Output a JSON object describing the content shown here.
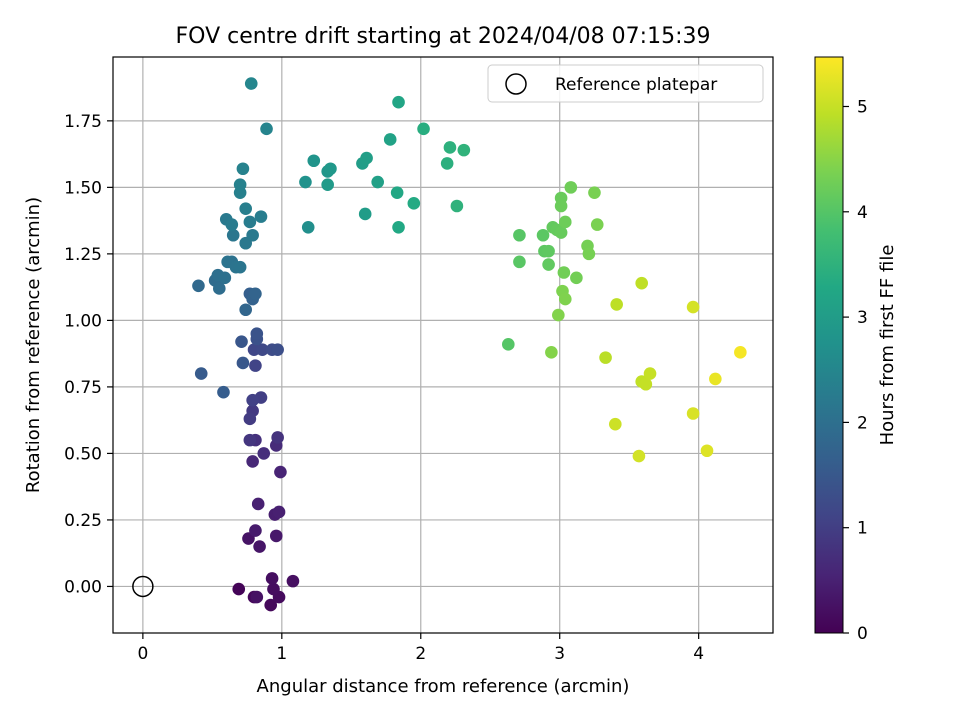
{
  "chart_data": {
    "type": "scatter",
    "title": "FOV centre drift starting at 2024/04/08 07:15:39",
    "xlabel": "Angular distance from reference (arcmin)",
    "ylabel": "Rotation from reference (arcmin)",
    "xlim": [
      -0.215,
      4.535
    ],
    "ylim": [
      -0.175,
      1.99
    ],
    "xticks": [
      0,
      1,
      2,
      3,
      4
    ],
    "yticks": [
      0.0,
      0.25,
      0.5,
      0.75,
      1.0,
      1.25,
      1.5,
      1.75
    ],
    "xtick_labels": [
      "0",
      "1",
      "2",
      "3",
      "4"
    ],
    "ytick_labels": [
      "0.00",
      "0.25",
      "0.50",
      "0.75",
      "1.00",
      "1.25",
      "1.50",
      "1.75"
    ],
    "grid": true,
    "legend": {
      "label": "Reference platepar",
      "position": "upper-right",
      "marker": "open-circle"
    },
    "reference_point": {
      "x": 0,
      "y": 0
    },
    "colorbar": {
      "label": "Hours from first FF file",
      "colormap": "viridis",
      "range": [
        0,
        5.47
      ],
      "ticks": [
        0,
        1,
        2,
        3,
        4,
        5
      ],
      "tick_labels": [
        "0",
        "1",
        "2",
        "3",
        "4",
        "5"
      ]
    },
    "points": [
      {
        "x": 0.69,
        "y": -0.01,
        "h": 0.05
      },
      {
        "x": 0.8,
        "y": -0.04,
        "h": 0.1
      },
      {
        "x": 0.92,
        "y": -0.07,
        "h": 0.12
      },
      {
        "x": 0.98,
        "y": -0.04,
        "h": 0.15
      },
      {
        "x": 0.94,
        "y": -0.01,
        "h": 0.18
      },
      {
        "x": 0.93,
        "y": 0.03,
        "h": 0.2
      },
      {
        "x": 1.08,
        "y": 0.02,
        "h": 0.22
      },
      {
        "x": 0.82,
        "y": -0.04,
        "h": 0.25
      },
      {
        "x": 0.76,
        "y": 0.18,
        "h": 0.28
      },
      {
        "x": 0.84,
        "y": 0.15,
        "h": 0.32
      },
      {
        "x": 0.96,
        "y": 0.19,
        "h": 0.36
      },
      {
        "x": 0.81,
        "y": 0.21,
        "h": 0.4
      },
      {
        "x": 0.95,
        "y": 0.27,
        "h": 0.45
      },
      {
        "x": 0.98,
        "y": 0.28,
        "h": 0.48
      },
      {
        "x": 0.83,
        "y": 0.31,
        "h": 0.5
      },
      {
        "x": 0.99,
        "y": 0.43,
        "h": 0.55
      },
      {
        "x": 0.79,
        "y": 0.47,
        "h": 0.62
      },
      {
        "x": 0.96,
        "y": 0.53,
        "h": 0.66
      },
      {
        "x": 0.87,
        "y": 0.5,
        "h": 0.72
      },
      {
        "x": 0.81,
        "y": 0.55,
        "h": 0.76
      },
      {
        "x": 0.97,
        "y": 0.56,
        "h": 0.8
      },
      {
        "x": 0.77,
        "y": 0.55,
        "h": 0.85
      },
      {
        "x": 0.79,
        "y": 0.66,
        "h": 0.9
      },
      {
        "x": 0.77,
        "y": 0.63,
        "h": 0.95
      },
      {
        "x": 0.85,
        "y": 0.71,
        "h": 1.0
      },
      {
        "x": 0.79,
        "y": 0.7,
        "h": 1.05
      },
      {
        "x": 0.81,
        "y": 0.83,
        "h": 1.1
      },
      {
        "x": 0.8,
        "y": 0.89,
        "h": 1.15
      },
      {
        "x": 0.86,
        "y": 0.89,
        "h": 1.2
      },
      {
        "x": 0.93,
        "y": 0.89,
        "h": 1.25
      },
      {
        "x": 0.97,
        "y": 0.89,
        "h": 1.3
      },
      {
        "x": 0.82,
        "y": 0.93,
        "h": 1.35
      },
      {
        "x": 0.82,
        "y": 0.95,
        "h": 1.4
      },
      {
        "x": 0.71,
        "y": 0.92,
        "h": 1.45
      },
      {
        "x": 0.72,
        "y": 0.84,
        "h": 1.48
      },
      {
        "x": 0.42,
        "y": 0.8,
        "h": 1.55
      },
      {
        "x": 0.58,
        "y": 0.73,
        "h": 1.6
      },
      {
        "x": 0.77,
        "y": 1.1,
        "h": 1.65
      },
      {
        "x": 0.79,
        "y": 1.08,
        "h": 1.7
      },
      {
        "x": 0.81,
        "y": 1.1,
        "h": 1.75
      },
      {
        "x": 0.74,
        "y": 1.04,
        "h": 1.8
      },
      {
        "x": 0.4,
        "y": 1.13,
        "h": 1.85
      },
      {
        "x": 0.52,
        "y": 1.15,
        "h": 1.9
      },
      {
        "x": 0.55,
        "y": 1.12,
        "h": 1.95
      },
      {
        "x": 0.54,
        "y": 1.17,
        "h": 2.0
      },
      {
        "x": 0.59,
        "y": 1.16,
        "h": 2.02
      },
      {
        "x": 0.64,
        "y": 1.22,
        "h": 2.05
      },
      {
        "x": 0.61,
        "y": 1.22,
        "h": 2.08
      },
      {
        "x": 0.67,
        "y": 1.2,
        "h": 2.1
      },
      {
        "x": 0.7,
        "y": 1.2,
        "h": 2.12
      },
      {
        "x": 0.65,
        "y": 1.32,
        "h": 2.15
      },
      {
        "x": 0.74,
        "y": 1.29,
        "h": 2.18
      },
      {
        "x": 0.79,
        "y": 1.32,
        "h": 2.2
      },
      {
        "x": 0.6,
        "y": 1.38,
        "h": 2.22
      },
      {
        "x": 0.64,
        "y": 1.36,
        "h": 2.25
      },
      {
        "x": 0.77,
        "y": 1.37,
        "h": 2.28
      },
      {
        "x": 0.85,
        "y": 1.39,
        "h": 2.3
      },
      {
        "x": 0.74,
        "y": 1.42,
        "h": 2.33
      },
      {
        "x": 0.7,
        "y": 1.48,
        "h": 2.36
      },
      {
        "x": 0.7,
        "y": 1.51,
        "h": 2.38
      },
      {
        "x": 0.72,
        "y": 1.57,
        "h": 2.4
      },
      {
        "x": 0.89,
        "y": 1.72,
        "h": 2.45
      },
      {
        "x": 0.78,
        "y": 1.89,
        "h": 2.5
      },
      {
        "x": 1.19,
        "y": 1.35,
        "h": 2.7
      },
      {
        "x": 1.17,
        "y": 1.52,
        "h": 2.75
      },
      {
        "x": 1.23,
        "y": 1.6,
        "h": 2.8
      },
      {
        "x": 1.33,
        "y": 1.56,
        "h": 2.85
      },
      {
        "x": 1.35,
        "y": 1.57,
        "h": 2.9
      },
      {
        "x": 1.33,
        "y": 1.51,
        "h": 2.95
      },
      {
        "x": 1.6,
        "y": 1.4,
        "h": 3.0
      },
      {
        "x": 1.58,
        "y": 1.59,
        "h": 3.02
      },
      {
        "x": 1.61,
        "y": 1.61,
        "h": 3.05
      },
      {
        "x": 1.69,
        "y": 1.52,
        "h": 3.1
      },
      {
        "x": 1.78,
        "y": 1.68,
        "h": 3.15
      },
      {
        "x": 1.84,
        "y": 1.82,
        "h": 3.2
      },
      {
        "x": 1.83,
        "y": 1.48,
        "h": 3.25
      },
      {
        "x": 1.84,
        "y": 1.35,
        "h": 3.28
      },
      {
        "x": 1.95,
        "y": 1.44,
        "h": 3.32
      },
      {
        "x": 2.02,
        "y": 1.72,
        "h": 3.4
      },
      {
        "x": 2.19,
        "y": 1.59,
        "h": 3.45
      },
      {
        "x": 2.21,
        "y": 1.65,
        "h": 3.48
      },
      {
        "x": 2.26,
        "y": 1.43,
        "h": 3.5
      },
      {
        "x": 2.31,
        "y": 1.64,
        "h": 3.52
      },
      {
        "x": 2.63,
        "y": 0.91,
        "h": 4.0
      },
      {
        "x": 2.71,
        "y": 1.32,
        "h": 4.02
      },
      {
        "x": 2.71,
        "y": 1.22,
        "h": 4.04
      },
      {
        "x": 2.88,
        "y": 1.32,
        "h": 4.06
      },
      {
        "x": 2.89,
        "y": 1.26,
        "h": 4.08
      },
      {
        "x": 2.92,
        "y": 1.26,
        "h": 4.1
      },
      {
        "x": 2.92,
        "y": 1.21,
        "h": 4.12
      },
      {
        "x": 2.95,
        "y": 1.35,
        "h": 4.14
      },
      {
        "x": 2.98,
        "y": 1.34,
        "h": 4.16
      },
      {
        "x": 3.01,
        "y": 1.33,
        "h": 4.18
      },
      {
        "x": 3.01,
        "y": 1.46,
        "h": 4.2
      },
      {
        "x": 3.01,
        "y": 1.43,
        "h": 4.22
      },
      {
        "x": 3.04,
        "y": 1.37,
        "h": 4.24
      },
      {
        "x": 3.08,
        "y": 1.5,
        "h": 4.26
      },
      {
        "x": 3.03,
        "y": 1.18,
        "h": 4.28
      },
      {
        "x": 3.12,
        "y": 1.16,
        "h": 4.3
      },
      {
        "x": 3.2,
        "y": 1.28,
        "h": 4.32
      },
      {
        "x": 3.21,
        "y": 1.25,
        "h": 4.34
      },
      {
        "x": 3.25,
        "y": 1.48,
        "h": 4.36
      },
      {
        "x": 3.27,
        "y": 1.36,
        "h": 4.38
      },
      {
        "x": 3.02,
        "y": 1.11,
        "h": 4.4
      },
      {
        "x": 3.04,
        "y": 1.08,
        "h": 4.42
      },
      {
        "x": 2.99,
        "y": 1.02,
        "h": 4.44
      },
      {
        "x": 2.94,
        "y": 0.88,
        "h": 4.46
      },
      {
        "x": 3.33,
        "y": 0.86,
        "h": 4.9
      },
      {
        "x": 3.41,
        "y": 1.06,
        "h": 4.92
      },
      {
        "x": 3.59,
        "y": 1.14,
        "h": 4.94
      },
      {
        "x": 3.59,
        "y": 0.77,
        "h": 4.96
      },
      {
        "x": 3.62,
        "y": 0.76,
        "h": 4.98
      },
      {
        "x": 3.65,
        "y": 0.8,
        "h": 5.0
      },
      {
        "x": 3.4,
        "y": 0.61,
        "h": 5.05
      },
      {
        "x": 3.57,
        "y": 0.49,
        "h": 5.1
      },
      {
        "x": 3.96,
        "y": 1.05,
        "h": 5.12
      },
      {
        "x": 3.96,
        "y": 0.65,
        "h": 5.15
      },
      {
        "x": 4.06,
        "y": 0.51,
        "h": 5.2
      },
      {
        "x": 4.12,
        "y": 0.78,
        "h": 5.3
      },
      {
        "x": 4.3,
        "y": 0.88,
        "h": 5.4
      }
    ]
  }
}
